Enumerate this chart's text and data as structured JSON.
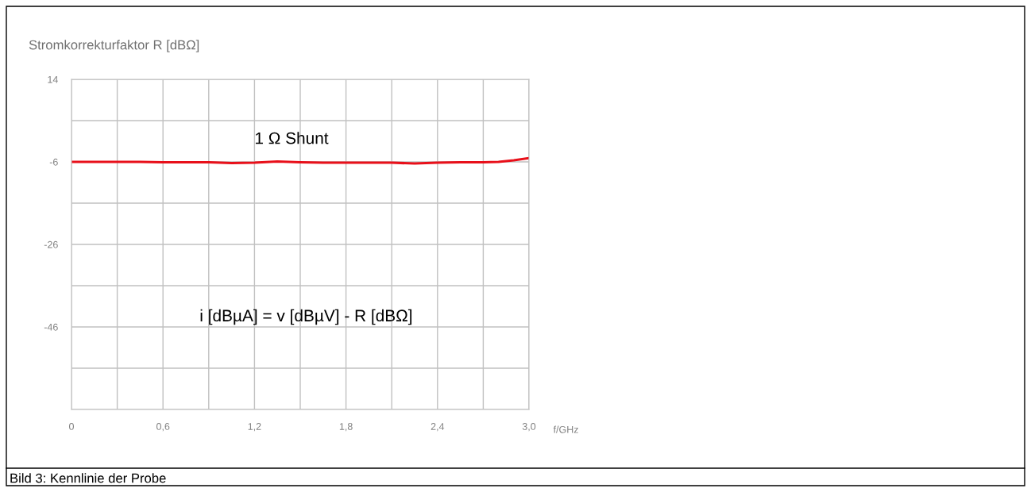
{
  "chart_data": {
    "type": "line",
    "ylabel": "Stromkorrekturfaktor R [dBΩ]",
    "xlabel": "f/GHz",
    "x": [
      0,
      0.15,
      0.3,
      0.45,
      0.6,
      0.75,
      0.9,
      1.05,
      1.2,
      1.35,
      1.5,
      1.65,
      1.8,
      1.95,
      2.1,
      2.25,
      2.4,
      2.55,
      2.7,
      2.8,
      2.9,
      3.0
    ],
    "series": [
      {
        "name": "1 Ω Shunt",
        "color": "#e8101a",
        "values": [
          -6.0,
          -6.0,
          -6.0,
          -6.0,
          -6.1,
          -6.1,
          -6.1,
          -6.3,
          -6.2,
          -5.9,
          -6.1,
          -6.2,
          -6.2,
          -6.2,
          -6.2,
          -6.4,
          -6.2,
          -6.1,
          -6.1,
          -6.0,
          -5.6,
          -5.1
        ]
      }
    ],
    "xlim": [
      0,
      3.0
    ],
    "xticks": [
      0,
      {
        "value": 0.3,
        "label": null
      },
      {
        "value": 0.6,
        "label": "0,6"
      },
      {
        "value": 0.9,
        "label": null
      },
      {
        "value": 1.2,
        "label": "1,2"
      },
      {
        "value": 1.5,
        "label": null
      },
      {
        "value": 1.8,
        "label": "1,8"
      },
      {
        "value": 2.1,
        "label": null
      },
      {
        "value": 2.4,
        "label": "2,4"
      },
      {
        "value": 2.7,
        "label": null
      },
      {
        "value": 3.0,
        "label": "3,0"
      }
    ],
    "ylim": [
      -66,
      14
    ],
    "yticks": [
      14,
      {
        "value": 4,
        "label": null
      },
      -6,
      {
        "value": -16,
        "label": null
      },
      -26,
      {
        "value": -36,
        "label": null
      },
      -46,
      {
        "value": -56,
        "label": null
      },
      {
        "value": -66,
        "label": null
      }
    ],
    "grid": true,
    "legend": false,
    "annotations": [
      "i [dBµA] = v [dBµV] - R [dBΩ]",
      "Bild 3: Kennlinie der Probe"
    ]
  }
}
